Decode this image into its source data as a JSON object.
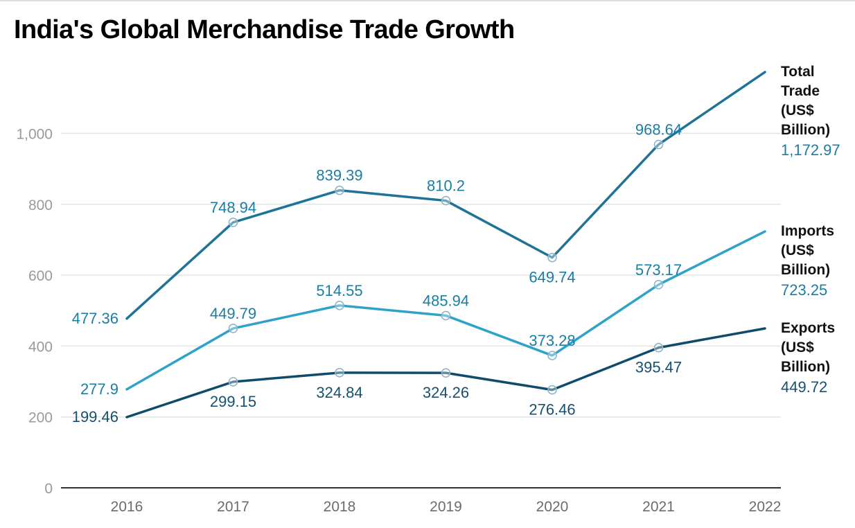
{
  "chart_data": {
    "type": "line",
    "title": "India's Global Merchandise Trade Growth",
    "xlabel": "",
    "ylabel": "",
    "categories": [
      "2016",
      "2017",
      "2018",
      "2019",
      "2020",
      "2021",
      "2022"
    ],
    "y_ticks": [
      0,
      200,
      400,
      600,
      800,
      1000
    ],
    "y_tick_labels": [
      "0",
      "200",
      "400",
      "600",
      "800",
      "1,000"
    ],
    "ylim": [
      0,
      1150
    ],
    "grid": true,
    "legend": "right, labels at line ends",
    "series": [
      {
        "name_lines": [
          "Total",
          "Trade",
          "(US$",
          "Billion)"
        ],
        "color": "#1f7396",
        "values": [
          477.36,
          748.94,
          839.39,
          810.2,
          649.74,
          968.64,
          1172.97
        ],
        "labels": [
          "477.36",
          "748.94",
          "839.39",
          "810.2",
          "649.74",
          "968.64",
          "1,172.97"
        ],
        "label_pos": [
          "left",
          "above",
          "above",
          "above",
          "below",
          "above",
          "end"
        ]
      },
      {
        "name_lines": [
          "Imports",
          "(US$",
          "Billion)"
        ],
        "color": "#2ea2c8",
        "values": [
          277.9,
          449.79,
          514.55,
          485.94,
          373.28,
          573.17,
          723.25
        ],
        "labels": [
          "277.9",
          "449.79",
          "514.55",
          "485.94",
          "373.28",
          "573.17",
          "723.25"
        ],
        "label_pos": [
          "left",
          "above",
          "above",
          "above",
          "above",
          "above",
          "end"
        ]
      },
      {
        "name_lines": [
          "Exports",
          "(US$",
          "Billion)"
        ],
        "color": "#0f4c6c",
        "values": [
          199.46,
          299.15,
          324.84,
          324.26,
          276.46,
          395.47,
          449.72
        ],
        "labels": [
          "199.46",
          "299.15",
          "324.84",
          "324.26",
          "276.46",
          "395.47",
          "449.72"
        ],
        "label_pos": [
          "left",
          "below",
          "below",
          "below",
          "below",
          "below",
          "end"
        ]
      }
    ]
  },
  "colors": {
    "total_label": "#1a7da3",
    "imports_label": "#1a7da3",
    "exports_label": "#15506f",
    "grid": "#e4e4e4",
    "axis": "#333333"
  }
}
